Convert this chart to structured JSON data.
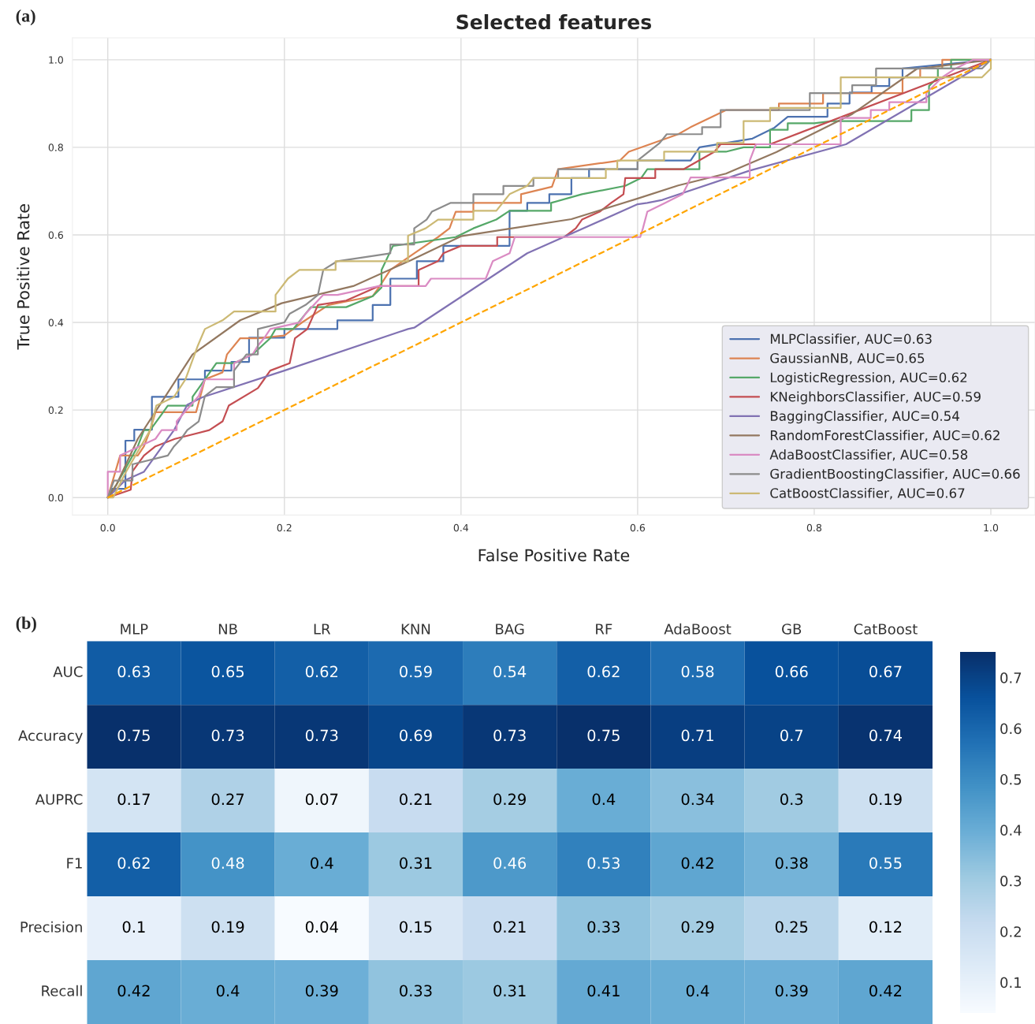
{
  "chart_data": [
    {
      "type": "line",
      "title": "Selected features",
      "xlabel": "False Positive Rate",
      "ylabel": "True Positive Rate",
      "annotations": [
        "(a)"
      ],
      "xlim": [
        -0.04,
        1.05
      ],
      "ylim": [
        -0.04,
        1.05
      ],
      "xticks": [
        {
          "value": 0,
          "label": "0.0"
        },
        0.2,
        0.4,
        0.6,
        0.8,
        {
          "value": 1,
          "label": "1.0"
        }
      ],
      "yticks": [
        {
          "value": 0,
          "label": "0.0"
        },
        0.2,
        0.4,
        0.6,
        0.8,
        {
          "value": 1,
          "label": "1.0"
        }
      ],
      "grid": true,
      "legend": "bottom right",
      "series": [
        {
          "name": "MLPClassifier, AUC=0.63",
          "color": "#4c72b0",
          "x": [
            0,
            0.005,
            0.02,
            0.02,
            0.03,
            0.03,
            0.05,
            0.05,
            0.08,
            0.08,
            0.11,
            0.11,
            0.14,
            0.14,
            0.16,
            0.16,
            0.2,
            0.2,
            0.26,
            0.26,
            0.3,
            0.3,
            0.32,
            0.32,
            0.35,
            0.35,
            0.38,
            0.38,
            0.455,
            0.455,
            0.475,
            0.475,
            0.5,
            0.5,
            0.525,
            0.525,
            0.545,
            0.545,
            0.6,
            0.6,
            0.66,
            0.67,
            0.73,
            0.755,
            0.77,
            0.815,
            0.815,
            0.84,
            0.84,
            0.865,
            0.865,
            0.885,
            0.885,
            0.9,
            0.9,
            1
          ],
          "values": [
            0,
            0.02,
            0.02,
            0.13,
            0.13,
            0.155,
            0.155,
            0.23,
            0.23,
            0.27,
            0.27,
            0.29,
            0.29,
            0.31,
            0.31,
            0.365,
            0.365,
            0.385,
            0.385,
            0.405,
            0.405,
            0.44,
            0.44,
            0.5,
            0.5,
            0.54,
            0.54,
            0.575,
            0.575,
            0.655,
            0.655,
            0.673,
            0.673,
            0.693,
            0.693,
            0.73,
            0.73,
            0.75,
            0.75,
            0.77,
            0.77,
            0.8,
            0.82,
            0.845,
            0.87,
            0.87,
            0.9,
            0.9,
            0.925,
            0.925,
            0.94,
            0.94,
            0.96,
            0.96,
            0.98,
            1
          ]
        },
        {
          "name": "GaussianNB, AUC=0.65",
          "color": "#dd8452",
          "x": [
            0,
            0.014,
            0.034,
            0.041,
            0.048,
            0.054,
            0.1,
            0.11,
            0.13,
            0.135,
            0.15,
            0.17,
            0.2,
            0.22,
            0.25,
            0.3,
            0.307,
            0.32,
            0.32,
            0.347,
            0.347,
            0.374,
            0.374,
            0.387,
            0.394,
            0.414,
            0.414,
            0.468,
            0.468,
            0.503,
            0.51,
            0.58,
            0.59,
            0.646,
            0.66,
            0.7,
            0.76,
            0.76,
            0.81,
            0.81,
            0.9,
            0.9,
            0.92,
            0.92,
            0.945,
            0.945,
            1
          ],
          "values": [
            0,
            0.096,
            0.096,
            0.117,
            0.154,
            0.195,
            0.195,
            0.27,
            0.286,
            0.327,
            0.364,
            0.364,
            0.37,
            0.4,
            0.44,
            0.46,
            0.48,
            0.52,
            0.52,
            0.558,
            0.558,
            0.595,
            0.595,
            0.615,
            0.653,
            0.653,
            0.673,
            0.673,
            0.693,
            0.71,
            0.75,
            0.77,
            0.79,
            0.83,
            0.846,
            0.885,
            0.885,
            0.9,
            0.9,
            0.924,
            0.924,
            0.96,
            0.96,
            0.98,
            0.98,
            1.0,
            1
          ]
        },
        {
          "name": "LogisticRegression, AUC=0.62",
          "color": "#55a868",
          "x": [
            0,
            0.01,
            0.034,
            0.041,
            0.048,
            0.061,
            0.068,
            0.096,
            0.096,
            0.117,
            0.123,
            0.143,
            0.164,
            0.184,
            0.19,
            0.21,
            0.23,
            0.27,
            0.3,
            0.31,
            0.31,
            0.323,
            0.394,
            0.414,
            0.44,
            0.455,
            0.502,
            0.502,
            0.537,
            0.586,
            0.604,
            0.611,
            0.67,
            0.67,
            0.7,
            0.72,
            0.75,
            0.75,
            0.77,
            0.77,
            0.8,
            0.82,
            0.91,
            0.91,
            0.93,
            0.93,
            0.94,
            0.94,
            0.955,
            0.955,
            1
          ],
          "values": [
            0,
            0.03,
            0.117,
            0.154,
            0.154,
            0.19,
            0.21,
            0.21,
            0.23,
            0.29,
            0.307,
            0.307,
            0.327,
            0.364,
            0.385,
            0.385,
            0.435,
            0.435,
            0.46,
            0.48,
            0.52,
            0.575,
            0.595,
            0.615,
            0.635,
            0.655,
            0.655,
            0.673,
            0.693,
            0.712,
            0.73,
            0.75,
            0.75,
            0.79,
            0.79,
            0.8,
            0.8,
            0.84,
            0.84,
            0.855,
            0.855,
            0.86,
            0.86,
            0.885,
            0.885,
            0.94,
            0.96,
            0.98,
            0.98,
            1.0,
            1
          ]
        },
        {
          "name": "KNeighborsClassifier, AUC=0.59",
          "color": "#c44e52",
          "x": [
            0,
            0.026,
            0.028,
            0.041,
            0.054,
            0.076,
            0.115,
            0.13,
            0.137,
            0.17,
            0.177,
            0.184,
            0.206,
            0.212,
            0.226,
            0.238,
            0.27,
            0.307,
            0.352,
            0.352,
            0.374,
            0.38,
            0.4,
            0.441,
            0.441,
            0.517,
            0.53,
            0.537,
            0.557,
            0.57,
            0.584,
            0.586,
            0.62,
            0.62,
            0.652,
            0.687,
            0.694,
            0.75,
            1
          ],
          "values": [
            0,
            0.018,
            0.06,
            0.096,
            0.117,
            0.134,
            0.154,
            0.174,
            0.21,
            0.25,
            0.27,
            0.29,
            0.307,
            0.364,
            0.385,
            0.44,
            0.45,
            0.483,
            0.483,
            0.52,
            0.54,
            0.558,
            0.575,
            0.575,
            0.595,
            0.595,
            0.615,
            0.635,
            0.653,
            0.673,
            0.693,
            0.73,
            0.73,
            0.75,
            0.75,
            0.79,
            0.807,
            0.807,
            1
          ]
        },
        {
          "name": "BaggingClassifier, AUC=0.54",
          "color": "#8172b3",
          "x": [
            0,
            0.02,
            0.041,
            0.075,
            0.09,
            0.107,
            0.2,
            0.34,
            0.347,
            0.475,
            0.6,
            0.611,
            0.628,
            0.727,
            0.836,
            1
          ],
          "values": [
            0,
            0.04,
            0.059,
            0.154,
            0.212,
            0.229,
            0.29,
            0.385,
            0.388,
            0.558,
            0.67,
            0.673,
            0.68,
            0.747,
            0.807,
            1
          ]
        },
        {
          "name": "RandomForestClassifier, AUC=0.62",
          "color": "#937860",
          "x": [
            0,
            0.01,
            0.034,
            0.096,
            0.15,
            0.197,
            0.278,
            0.343,
            0.4,
            0.455,
            0.525,
            0.6,
            0.646,
            0.7,
            0.757,
            0.843,
            0.916,
            1
          ],
          "values": [
            0,
            0.03,
            0.134,
            0.327,
            0.405,
            0.444,
            0.483,
            0.542,
            0.597,
            0.614,
            0.636,
            0.683,
            0.713,
            0.74,
            0.789,
            0.876,
            0.979,
            1
          ]
        },
        {
          "name": "AdaBoostClassifier, AUC=0.58",
          "color": "#da8bc3",
          "x": [
            0,
            0.0,
            0.014,
            0.014,
            0.054,
            0.061,
            0.078,
            0.078,
            0.103,
            0.11,
            0.143,
            0.143,
            0.164,
            0.17,
            0.177,
            0.184,
            0.217,
            0.224,
            0.244,
            0.26,
            0.307,
            0.36,
            0.366,
            0.428,
            0.436,
            0.455,
            0.461,
            0.603,
            0.606,
            0.611,
            0.631,
            0.651,
            0.656,
            0.66,
            0.727,
            0.727,
            0.734,
            0.83,
            0.83,
            0.864,
            0.864,
            0.885,
            0.885,
            0.927,
            0.927,
            0.945,
            0.96,
            0.98,
            1
          ],
          "values": [
            0,
            0.059,
            0.059,
            0.096,
            0.134,
            0.154,
            0.154,
            0.174,
            0.232,
            0.27,
            0.27,
            0.307,
            0.327,
            0.347,
            0.364,
            0.385,
            0.4,
            0.42,
            0.463,
            0.463,
            0.483,
            0.483,
            0.5,
            0.5,
            0.54,
            0.558,
            0.595,
            0.595,
            0.615,
            0.653,
            0.673,
            0.693,
            0.713,
            0.731,
            0.731,
            0.77,
            0.807,
            0.807,
            0.867,
            0.867,
            0.885,
            0.885,
            0.903,
            0.903,
            0.924,
            0.96,
            0.98,
            1.0,
            1
          ]
        },
        {
          "name": "GradientBoostingClassifier, AUC=0.66",
          "color": "#8c8c8c",
          "x": [
            0,
            0.007,
            0.028,
            0.028,
            0.068,
            0.075,
            0.083,
            0.09,
            0.103,
            0.11,
            0.123,
            0.143,
            0.143,
            0.157,
            0.17,
            0.17,
            0.2,
            0.206,
            0.224,
            0.238,
            0.244,
            0.26,
            0.32,
            0.32,
            0.347,
            0.347,
            0.361,
            0.367,
            0.388,
            0.414,
            0.414,
            0.448,
            0.448,
            0.482,
            0.482,
            0.51,
            0.51,
            0.6,
            0.6,
            0.625,
            0.633,
            0.673,
            0.673,
            0.694,
            0.694,
            0.795,
            0.795,
            0.843,
            0.843,
            0.87,
            0.87,
            0.99,
            1
          ],
          "values": [
            0,
            0.039,
            0.039,
            0.076,
            0.096,
            0.117,
            0.134,
            0.154,
            0.174,
            0.232,
            0.252,
            0.252,
            0.29,
            0.327,
            0.327,
            0.385,
            0.4,
            0.42,
            0.44,
            0.463,
            0.52,
            0.54,
            0.558,
            0.578,
            0.578,
            0.615,
            0.635,
            0.653,
            0.673,
            0.673,
            0.693,
            0.693,
            0.712,
            0.712,
            0.73,
            0.73,
            0.75,
            0.75,
            0.77,
            0.81,
            0.83,
            0.83,
            0.846,
            0.846,
            0.885,
            0.885,
            0.924,
            0.924,
            0.942,
            0.942,
            0.98,
            0.98,
            1
          ]
        },
        {
          "name": "CatBoostClassifier, AUC=0.67",
          "color": "#ccb974",
          "x": [
            0,
            0.006,
            0.021,
            0.048,
            0.055,
            0.075,
            0.088,
            0.102,
            0.11,
            0.13,
            0.143,
            0.19,
            0.19,
            0.204,
            0.217,
            0.258,
            0.258,
            0.34,
            0.34,
            0.36,
            0.374,
            0.414,
            0.414,
            0.44,
            0.455,
            0.475,
            0.482,
            0.564,
            0.564,
            0.577,
            0.577,
            0.63,
            0.63,
            0.69,
            0.69,
            0.72,
            0.72,
            0.75,
            0.75,
            0.83,
            0.83,
            0.99,
            1,
            1
          ],
          "values": [
            0,
            0,
            0.06,
            0.154,
            0.21,
            0.23,
            0.27,
            0.347,
            0.385,
            0.405,
            0.425,
            0.425,
            0.463,
            0.5,
            0.52,
            0.52,
            0.54,
            0.54,
            0.598,
            0.615,
            0.635,
            0.635,
            0.655,
            0.655,
            0.693,
            0.712,
            0.73,
            0.73,
            0.75,
            0.75,
            0.77,
            0.77,
            0.79,
            0.79,
            0.81,
            0.81,
            0.86,
            0.86,
            0.89,
            0.89,
            0.96,
            0.96,
            0.98,
            1
          ]
        },
        {
          "color": "#ffa500",
          "line_style": "dashed",
          "x": [
            0,
            1
          ],
          "values": [
            0,
            1
          ]
        }
      ]
    },
    {
      "type": "heatmap",
      "annotations": [
        "(b)"
      ],
      "categories": [
        "MLP",
        "NB",
        "LR",
        "KNN",
        "BAG",
        "RF",
        "AdaBoost",
        "GB",
        "CatBoost"
      ],
      "y_categories": [
        "AUC",
        "Accuracy",
        "AUPRC",
        "F1",
        "Precision",
        "Recall"
      ],
      "cells": [
        [
          0.63,
          0.65,
          0.62,
          0.59,
          0.54,
          0.62,
          0.58,
          0.66,
          0.67
        ],
        [
          0.75,
          0.73,
          0.73,
          0.69,
          0.73,
          0.75,
          0.71,
          0.7,
          0.74
        ],
        [
          0.17,
          0.27,
          0.07,
          0.21,
          0.29,
          0.4,
          0.34,
          0.3,
          0.19
        ],
        [
          0.62,
          0.48,
          0.4,
          0.31,
          0.46,
          0.53,
          0.42,
          0.38,
          0.55
        ],
        [
          0.1,
          0.19,
          0.04,
          0.15,
          0.21,
          0.33,
          0.29,
          0.25,
          0.12
        ],
        [
          0.42,
          0.4,
          0.39,
          0.33,
          0.31,
          0.41,
          0.4,
          0.39,
          0.42
        ]
      ],
      "clim": [
        0.04,
        0.75
      ],
      "cticks": [
        0.1,
        0.2,
        0.3,
        0.4,
        0.5,
        0.6,
        0.7
      ],
      "data_labels": true
    }
  ]
}
